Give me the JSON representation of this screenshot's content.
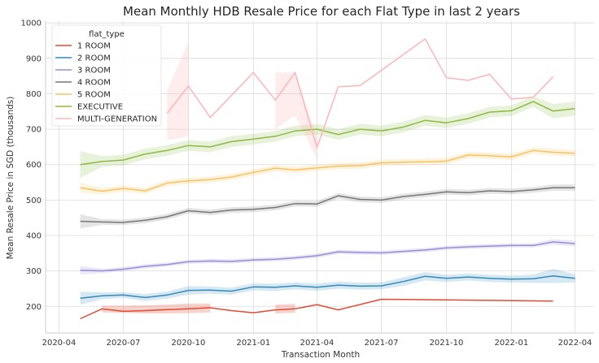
{
  "chart_data": {
    "type": "line",
    "title": "Mean Monthly HDB Resale Price for each Flat Type in last 2 years",
    "xlabel": "Transaction Month",
    "ylabel": "Mean Resale Price in SGD (thousands)",
    "xlim": [
      "2020-03-13",
      "2022-04-28"
    ],
    "ylim": [
      125,
      1005
    ],
    "x_ticks": [
      "2020-04",
      "2020-07",
      "2020-10",
      "2021-01",
      "2021-04",
      "2021-07",
      "2021-10",
      "2022-01",
      "2022-04"
    ],
    "y_ticks": [
      200,
      300,
      400,
      500,
      600,
      700,
      800,
      900,
      1000
    ],
    "grid": true,
    "legend": {
      "title": "flat_type",
      "position": "top-left"
    },
    "series": [
      {
        "name": "1 ROOM",
        "color": "#e24a33",
        "x": [
          "2020-05",
          "2020-06",
          "2020-07",
          "2020-08",
          "2020-09",
          "2020-10",
          "2020-11",
          "2020-12",
          "2021-01",
          "2021-02",
          "2021-03",
          "2021-04",
          "2021-05",
          "2021-07",
          "2022-03"
        ],
        "values": [
          165,
          193,
          186,
          188,
          191,
          193,
          196,
          188,
          182,
          190,
          193,
          205,
          190,
          220,
          215
        ],
        "ci_x": [
          "2020-06",
          "2020-07",
          "2020-08",
          "2020-09",
          "2020-10",
          "2020-11"
        ],
        "ci_low": [
          183,
          182,
          180,
          180,
          181,
          183
        ],
        "ci_high": [
          202,
          202,
          203,
          205,
          208,
          208
        ],
        "ci_x2": [
          "2021-02",
          "2021-03"
        ],
        "ci_low2": [
          180,
          182
        ],
        "ci_high2": [
          205,
          207
        ]
      },
      {
        "name": "2 ROOM",
        "color": "#348abd",
        "x": [
          "2020-05",
          "2020-06",
          "2020-07",
          "2020-08",
          "2020-09",
          "2020-10",
          "2020-11",
          "2020-12",
          "2021-01",
          "2021-02",
          "2021-03",
          "2021-04",
          "2021-05",
          "2021-06",
          "2021-07",
          "2021-08",
          "2021-09",
          "2021-10",
          "2021-11",
          "2021-12",
          "2022-01",
          "2022-02",
          "2022-03",
          "2022-04"
        ],
        "values": [
          223,
          230,
          232,
          225,
          232,
          245,
          246,
          243,
          255,
          254,
          258,
          254,
          260,
          257,
          258,
          270,
          285,
          279,
          283,
          279,
          277,
          278,
          286,
          279
        ],
        "ci_half": [
          18,
          10,
          8,
          10,
          10,
          12,
          10,
          10,
          10,
          10,
          10,
          10,
          10,
          10,
          10,
          12,
          12,
          10,
          10,
          10,
          10,
          12,
          20,
          12
        ]
      },
      {
        "name": "3 ROOM",
        "color": "#988ed5",
        "x": [
          "2020-05",
          "2020-06",
          "2020-07",
          "2020-08",
          "2020-09",
          "2020-10",
          "2020-11",
          "2020-12",
          "2021-01",
          "2021-02",
          "2021-03",
          "2021-04",
          "2021-05",
          "2021-06",
          "2021-07",
          "2021-08",
          "2021-09",
          "2021-10",
          "2021-11",
          "2021-12",
          "2022-01",
          "2022-02",
          "2022-03",
          "2022-04"
        ],
        "values": [
          302,
          300,
          305,
          313,
          318,
          326,
          328,
          327,
          331,
          333,
          337,
          343,
          354,
          352,
          351,
          355,
          359,
          365,
          368,
          370,
          372,
          372,
          382,
          377
        ],
        "ci_half": [
          12,
          6,
          6,
          6,
          6,
          6,
          6,
          6,
          6,
          6,
          6,
          6,
          6,
          6,
          6,
          6,
          6,
          6,
          6,
          6,
          6,
          6,
          8,
          8
        ]
      },
      {
        "name": "4 ROOM",
        "color": "#777777",
        "x": [
          "2020-05",
          "2020-06",
          "2020-07",
          "2020-08",
          "2020-09",
          "2020-10",
          "2020-11",
          "2020-12",
          "2021-01",
          "2021-02",
          "2021-03",
          "2021-04",
          "2021-05",
          "2021-06",
          "2021-07",
          "2021-08",
          "2021-09",
          "2021-10",
          "2021-11",
          "2021-12",
          "2022-01",
          "2022-02",
          "2022-03",
          "2022-04"
        ],
        "values": [
          440,
          438,
          437,
          443,
          453,
          470,
          465,
          472,
          474,
          479,
          490,
          489,
          512,
          502,
          500,
          510,
          516,
          523,
          521,
          526,
          524,
          529,
          535,
          535
        ],
        "ci_half": [
          20,
          8,
          8,
          8,
          8,
          8,
          8,
          8,
          8,
          8,
          8,
          8,
          8,
          8,
          8,
          8,
          8,
          8,
          8,
          8,
          8,
          8,
          9,
          9
        ]
      },
      {
        "name": "5 ROOM",
        "color": "#fbc15e",
        "x": [
          "2020-05",
          "2020-06",
          "2020-07",
          "2020-08",
          "2020-09",
          "2020-10",
          "2020-11",
          "2020-12",
          "2021-01",
          "2021-02",
          "2021-03",
          "2021-04",
          "2021-05",
          "2021-06",
          "2021-07",
          "2021-08",
          "2021-09",
          "2021-10",
          "2021-11",
          "2021-12",
          "2022-01",
          "2022-02",
          "2022-03",
          "2022-04"
        ],
        "values": [
          535,
          525,
          533,
          526,
          548,
          554,
          558,
          565,
          578,
          590,
          585,
          591,
          596,
          597,
          605,
          607,
          608,
          610,
          627,
          625,
          622,
          640,
          635,
          632
        ],
        "ci_half": [
          14,
          9,
          9,
          9,
          9,
          9,
          9,
          9,
          9,
          9,
          9,
          9,
          9,
          9,
          9,
          9,
          9,
          9,
          9,
          9,
          9,
          9,
          10,
          10
        ]
      },
      {
        "name": "EXECUTIVE",
        "color": "#8eba42",
        "x": [
          "2020-05",
          "2020-06",
          "2020-07",
          "2020-08",
          "2020-09",
          "2020-10",
          "2020-11",
          "2020-12",
          "2021-01",
          "2021-02",
          "2021-03",
          "2021-04",
          "2021-05",
          "2021-06",
          "2021-07",
          "2021-08",
          "2021-09",
          "2021-10",
          "2021-11",
          "2021-12",
          "2022-01",
          "2022-02",
          "2022-03",
          "2022-04"
        ],
        "values": [
          600,
          609,
          613,
          630,
          640,
          654,
          650,
          665,
          672,
          680,
          695,
          700,
          685,
          700,
          695,
          706,
          725,
          718,
          730,
          748,
          752,
          778,
          751,
          758
        ],
        "ci_half": [
          38,
          15,
          15,
          15,
          15,
          15,
          15,
          15,
          15,
          15,
          15,
          15,
          15,
          15,
          15,
          15,
          15,
          15,
          15,
          15,
          15,
          15,
          20,
          20
        ]
      },
      {
        "name": "MULTI-GENERATION",
        "color": "#ffb5b8",
        "x": [
          "2020-09",
          "2020-10",
          "2020-11",
          "2021-01",
          "2021-02",
          "2021-03",
          "2021-04",
          "2021-05",
          "2021-06",
          "2021-09",
          "2021-10",
          "2021-11",
          "2021-12",
          "2022-01",
          "2022-02",
          "2022-03"
        ],
        "values": [
          745,
          822,
          733,
          860,
          782,
          860,
          648,
          820,
          823,
          955,
          845,
          838,
          855,
          785,
          790,
          848
        ],
        "ci_x": [
          "2020-09",
          "2020-10"
        ],
        "ci_low": [
          670,
          680
        ],
        "ci_high": [
          810,
          945
        ],
        "ci_x2": [
          "2021-02",
          "2021-03",
          "2021-04"
        ],
        "ci_low2": [
          700,
          740,
          615
        ],
        "ci_high2": [
          860,
          860,
          680
        ]
      }
    ]
  }
}
